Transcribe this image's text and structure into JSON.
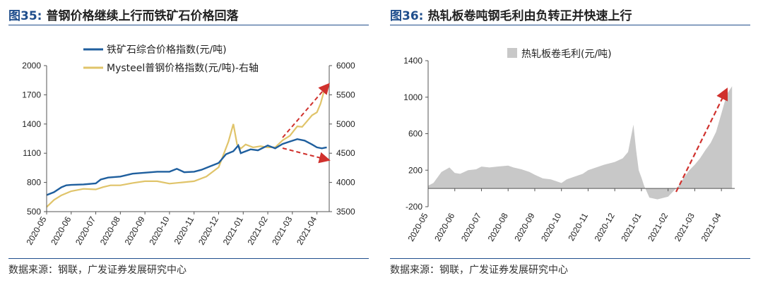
{
  "left": {
    "figure_num": "图35:",
    "title": "普钢价格继续上行而铁矿石价格回落",
    "source": "数据来源：钢联，广发证券发展研究中心"
  },
  "right": {
    "figure_num": "图36:",
    "title": "热轧板卷吨钢毛利由负转正并快速上行",
    "source": "数据来源：钢联，广发证券发展研究中心"
  },
  "colors": {
    "iron_ore": "#1f5f9e",
    "steel": "#e0c46a",
    "margin_area": "#c8c8c8",
    "arrow": "#d0312d",
    "rule": "#1f4e8c"
  },
  "chart_data": [
    {
      "type": "line",
      "title": "",
      "x_tick_labels": [
        "2020-05",
        "2020-06",
        "2020-07",
        "2020-08",
        "2020-09",
        "2020-10",
        "2020-11",
        "2020-12",
        "2021-01",
        "2021-02",
        "2021-03",
        "2021-04"
      ],
      "y_left": {
        "ylim": [
          500,
          2000
        ],
        "ticks": [
          500,
          800,
          1100,
          1400,
          1700,
          2000
        ]
      },
      "y_right": {
        "ylim": [
          3500,
          6000
        ],
        "ticks": [
          3500,
          4000,
          4500,
          5000,
          5500,
          6000
        ]
      },
      "legend_position": "top",
      "series": [
        {
          "name": "铁矿石综合价格指数(元/吨)",
          "axis": "left",
          "x": [
            0,
            0.3,
            0.6,
            0.8,
            1.0,
            1.5,
            2.0,
            2.2,
            2.5,
            3.0,
            3.5,
            4.0,
            4.5,
            5.0,
            5.3,
            5.6,
            6.0,
            6.3,
            6.6,
            7.0,
            7.3,
            7.6,
            7.8,
            7.9,
            8.0,
            8.3,
            8.6,
            9.0,
            9.3,
            9.6,
            9.9,
            10.2,
            10.5,
            10.8,
            11.0,
            11.2,
            11.3,
            11.4
          ],
          "y": [
            670,
            700,
            750,
            770,
            775,
            780,
            790,
            830,
            850,
            860,
            890,
            900,
            910,
            910,
            940,
            905,
            910,
            930,
            960,
            1000,
            1090,
            1120,
            1180,
            1100,
            1110,
            1140,
            1130,
            1180,
            1150,
            1195,
            1220,
            1245,
            1230,
            1190,
            1160,
            1150,
            1155,
            1160
          ]
        },
        {
          "name": "Mysteel普钢价格指数(元/吨)-右轴",
          "axis": "right",
          "x": [
            0,
            0.3,
            0.6,
            1.0,
            1.5,
            2.0,
            2.3,
            2.6,
            3.0,
            3.5,
            4.0,
            4.5,
            5.0,
            5.5,
            6.0,
            6.5,
            7.0,
            7.4,
            7.6,
            7.75,
            7.9,
            8.1,
            8.4,
            8.7,
            9.0,
            9.3,
            9.6,
            9.9,
            10.2,
            10.4,
            10.6,
            10.8,
            11.0,
            11.15,
            11.3,
            11.4
          ],
          "y": [
            3580,
            3700,
            3780,
            3850,
            3890,
            3880,
            3920,
            3950,
            3950,
            3990,
            4020,
            4020,
            3980,
            4000,
            4020,
            4100,
            4260,
            4700,
            5000,
            4650,
            4580,
            4650,
            4600,
            4620,
            4600,
            4600,
            4720,
            4800,
            4960,
            4950,
            5050,
            5150,
            5200,
            5350,
            5580,
            5560
          ]
        }
      ],
      "annotations": [
        "trend arrow up (steel)",
        "trend arrow down (iron ore)"
      ]
    },
    {
      "type": "area",
      "title": "",
      "x_tick_labels": [
        "2020-05",
        "2020-06",
        "2020-07",
        "2020-08",
        "2020-09",
        "2020-10",
        "2020-11",
        "2020-12",
        "2021-01",
        "2021-02",
        "2021-03",
        "2021-04"
      ],
      "ylim": [
        -200,
        1400
      ],
      "y_ticks": [
        -200,
        200,
        600,
        1000,
        1400
      ],
      "legend_position": "top-left",
      "series": [
        {
          "name": "热轧板卷毛利(元/吨)",
          "x": [
            0,
            0.2,
            0.5,
            0.8,
            1.0,
            1.2,
            1.5,
            1.8,
            2.0,
            2.3,
            2.6,
            3.0,
            3.2,
            3.5,
            3.8,
            4.0,
            4.3,
            4.6,
            5.0,
            5.2,
            5.5,
            5.8,
            6.0,
            6.3,
            6.6,
            7.0,
            7.3,
            7.5,
            7.7,
            7.8,
            7.9,
            8.0,
            8.1,
            8.3,
            8.6,
            9.0,
            9.2,
            9.4,
            9.6,
            9.8,
            10.0,
            10.2,
            10.4,
            10.6,
            10.8,
            11.0,
            11.2,
            11.4
          ],
          "y": [
            30,
            60,
            180,
            230,
            170,
            160,
            200,
            210,
            240,
            230,
            240,
            250,
            230,
            210,
            180,
            150,
            110,
            100,
            60,
            100,
            130,
            160,
            200,
            230,
            260,
            290,
            330,
            400,
            700,
            420,
            200,
            120,
            30,
            -100,
            -120,
            -90,
            -30,
            30,
            120,
            200,
            260,
            330,
            420,
            500,
            620,
            820,
            1030,
            1120
          ]
        }
      ],
      "annotations": [
        "trend arrow up"
      ]
    }
  ]
}
